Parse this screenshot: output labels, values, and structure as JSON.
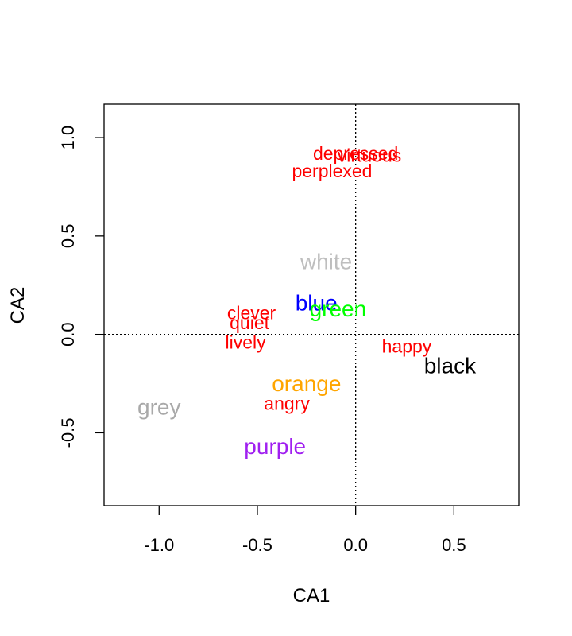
{
  "chart_data": {
    "type": "scatter",
    "title": "",
    "xlabel": "CA1",
    "ylabel": "CA2",
    "xlim": [
      -1.28,
      0.83
    ],
    "ylim": [
      -0.87,
      1.17
    ],
    "xticks": [
      -1.0,
      -0.5,
      0.0,
      0.5
    ],
    "xtick_labels": [
      "-1.0",
      "-0.5",
      "0.0",
      "0.5"
    ],
    "yticks": [
      -0.5,
      0.0,
      0.5,
      1.0
    ],
    "ytick_labels": [
      "-0.5",
      "0.0",
      "0.5",
      "1.0"
    ],
    "reference_lines": {
      "x": 0,
      "y": 0,
      "style": "dotted"
    },
    "grid": false,
    "series": [
      {
        "color": "#ff0000",
        "points": [
          {
            "label": "depressed",
            "x": 0.0,
            "y": 0.92
          },
          {
            "label": "virtuous",
            "x": 0.07,
            "y": 0.91
          },
          {
            "label": "perplexed",
            "x": -0.12,
            "y": 0.83
          },
          {
            "label": "clever",
            "x": -0.53,
            "y": 0.11
          },
          {
            "label": "quiet",
            "x": -0.54,
            "y": 0.06
          },
          {
            "label": "lively",
            "x": -0.56,
            "y": -0.04
          },
          {
            "label": "happy",
            "x": 0.26,
            "y": -0.06
          },
          {
            "label": "angry",
            "x": -0.35,
            "y": -0.35
          }
        ]
      },
      {
        "color": "multi",
        "points": [
          {
            "label": "white",
            "x": -0.15,
            "y": 0.37,
            "color": "#bebebe"
          },
          {
            "label": "blue",
            "x": -0.2,
            "y": 0.16,
            "color": "#0000ff"
          },
          {
            "label": "green",
            "x": -0.09,
            "y": 0.13,
            "color": "#00ff00"
          },
          {
            "label": "black",
            "x": 0.48,
            "y": -0.16,
            "color": "#000000"
          },
          {
            "label": "orange",
            "x": -0.25,
            "y": -0.25,
            "color": "#ffa500"
          },
          {
            "label": "grey",
            "x": -1.0,
            "y": -0.37,
            "color": "#a9a9a9"
          },
          {
            "label": "purple",
            "x": -0.41,
            "y": -0.57,
            "color": "#a020f0"
          }
        ]
      }
    ]
  }
}
